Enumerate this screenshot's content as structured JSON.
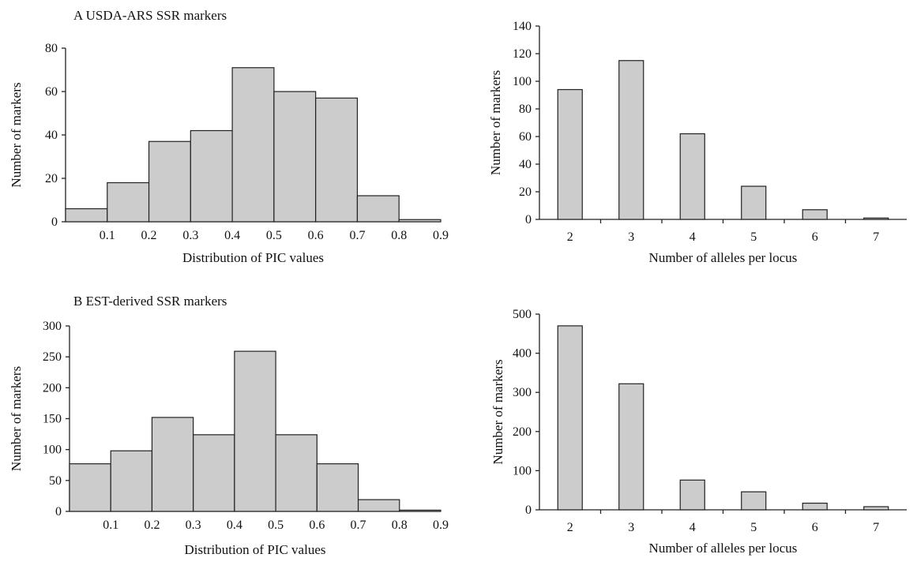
{
  "panels": {
    "a": {
      "title": "A  USDA-ARS SSR markers"
    },
    "b": {
      "title": "B  EST-derived SSR markers"
    }
  },
  "chart_data": [
    {
      "id": "a-pic",
      "type": "bar",
      "title": "",
      "xlabel": "Distribution of PIC values",
      "ylabel": "Number of markers",
      "bin_edges": [
        0,
        0.1,
        0.2,
        0.3,
        0.4,
        0.5,
        0.6,
        0.7,
        0.8,
        0.9
      ],
      "x_tick_labels": [
        "0.1",
        "0.2",
        "0.3",
        "0.4",
        "0.5",
        "0.6",
        "0.7",
        "0.8",
        "0.9"
      ],
      "values": [
        6,
        18,
        37,
        42,
        71,
        60,
        57,
        12,
        1
      ],
      "ylim": [
        0,
        80
      ],
      "y_ticks": [
        0,
        20,
        40,
        60,
        80
      ],
      "grid": false
    },
    {
      "id": "a-alleles",
      "type": "bar",
      "title": "",
      "xlabel": "Number of alleles per locus",
      "ylabel": "Number of markers",
      "categories": [
        "2",
        "3",
        "4",
        "5",
        "6",
        "7"
      ],
      "values": [
        94,
        115,
        62,
        24,
        7,
        1
      ],
      "ylim": [
        0,
        140
      ],
      "y_ticks": [
        0,
        20,
        40,
        60,
        80,
        100,
        120,
        140
      ],
      "y_tick_labels": [
        "0",
        "20",
        "40",
        "60",
        "80",
        "100",
        "120",
        "140"
      ],
      "grid": false
    },
    {
      "id": "b-pic",
      "type": "bar",
      "title": "",
      "xlabel": "Distribution of PIC values",
      "ylabel": "Number of markers",
      "bin_edges": [
        0,
        0.1,
        0.2,
        0.3,
        0.4,
        0.5,
        0.6,
        0.7,
        0.8,
        0.9
      ],
      "x_tick_labels": [
        "0.1",
        "0.2",
        "0.3",
        "0.4",
        "0.5",
        "0.6",
        "0.7",
        "0.8",
        "0.9"
      ],
      "values": [
        77,
        98,
        152,
        124,
        259,
        124,
        77,
        19,
        2
      ],
      "ylim": [
        0,
        300
      ],
      "y_ticks": [
        0,
        50,
        100,
        150,
        200,
        250,
        300
      ],
      "grid": false
    },
    {
      "id": "b-alleles",
      "type": "bar",
      "title": "",
      "xlabel": "Number of alleles per locus",
      "ylabel": "Number of markers",
      "categories": [
        "2",
        "3",
        "4",
        "5",
        "6",
        "7"
      ],
      "values": [
        470,
        322,
        76,
        46,
        17,
        8
      ],
      "ylim": [
        0,
        500
      ],
      "y_ticks": [
        0,
        100,
        200,
        300,
        400,
        500
      ],
      "grid": false
    }
  ]
}
